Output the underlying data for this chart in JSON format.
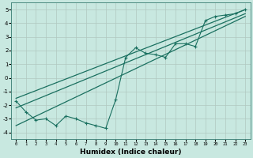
{
  "xlabel": "Humidex (Indice chaleur)",
  "ylabel": "",
  "bg_color": "#c8e8e0",
  "grid_color": "#b0c8c0",
  "line_color": "#1a7060",
  "xlim": [
    -0.5,
    23.5
  ],
  "ylim": [
    -4.5,
    5.5
  ],
  "xticks": [
    0,
    1,
    2,
    3,
    4,
    5,
    6,
    7,
    8,
    9,
    10,
    11,
    12,
    13,
    14,
    15,
    16,
    17,
    18,
    19,
    20,
    21,
    22,
    23
  ],
  "yticks": [
    -4,
    -3,
    -2,
    -1,
    0,
    1,
    2,
    3,
    4,
    5
  ],
  "data_x": [
    0,
    1,
    2,
    3,
    4,
    5,
    6,
    7,
    8,
    9,
    10,
    11,
    12,
    13,
    14,
    15,
    16,
    17,
    18,
    19,
    20,
    21,
    22,
    23
  ],
  "data_y": [
    -1.7,
    -2.5,
    -3.1,
    -3.0,
    -3.5,
    -2.8,
    -3.0,
    -3.3,
    -3.5,
    -3.7,
    -1.6,
    1.5,
    2.2,
    1.8,
    1.7,
    1.5,
    2.5,
    2.5,
    2.3,
    4.2,
    4.5,
    4.6,
    4.7,
    5.0
  ],
  "line1_x": [
    0,
    23
  ],
  "line1_y": [
    -1.5,
    5.0
  ],
  "line2_x": [
    0,
    23
  ],
  "line2_y": [
    -2.2,
    4.7
  ],
  "line3_x": [
    0,
    23
  ],
  "line3_y": [
    -3.5,
    4.5
  ]
}
